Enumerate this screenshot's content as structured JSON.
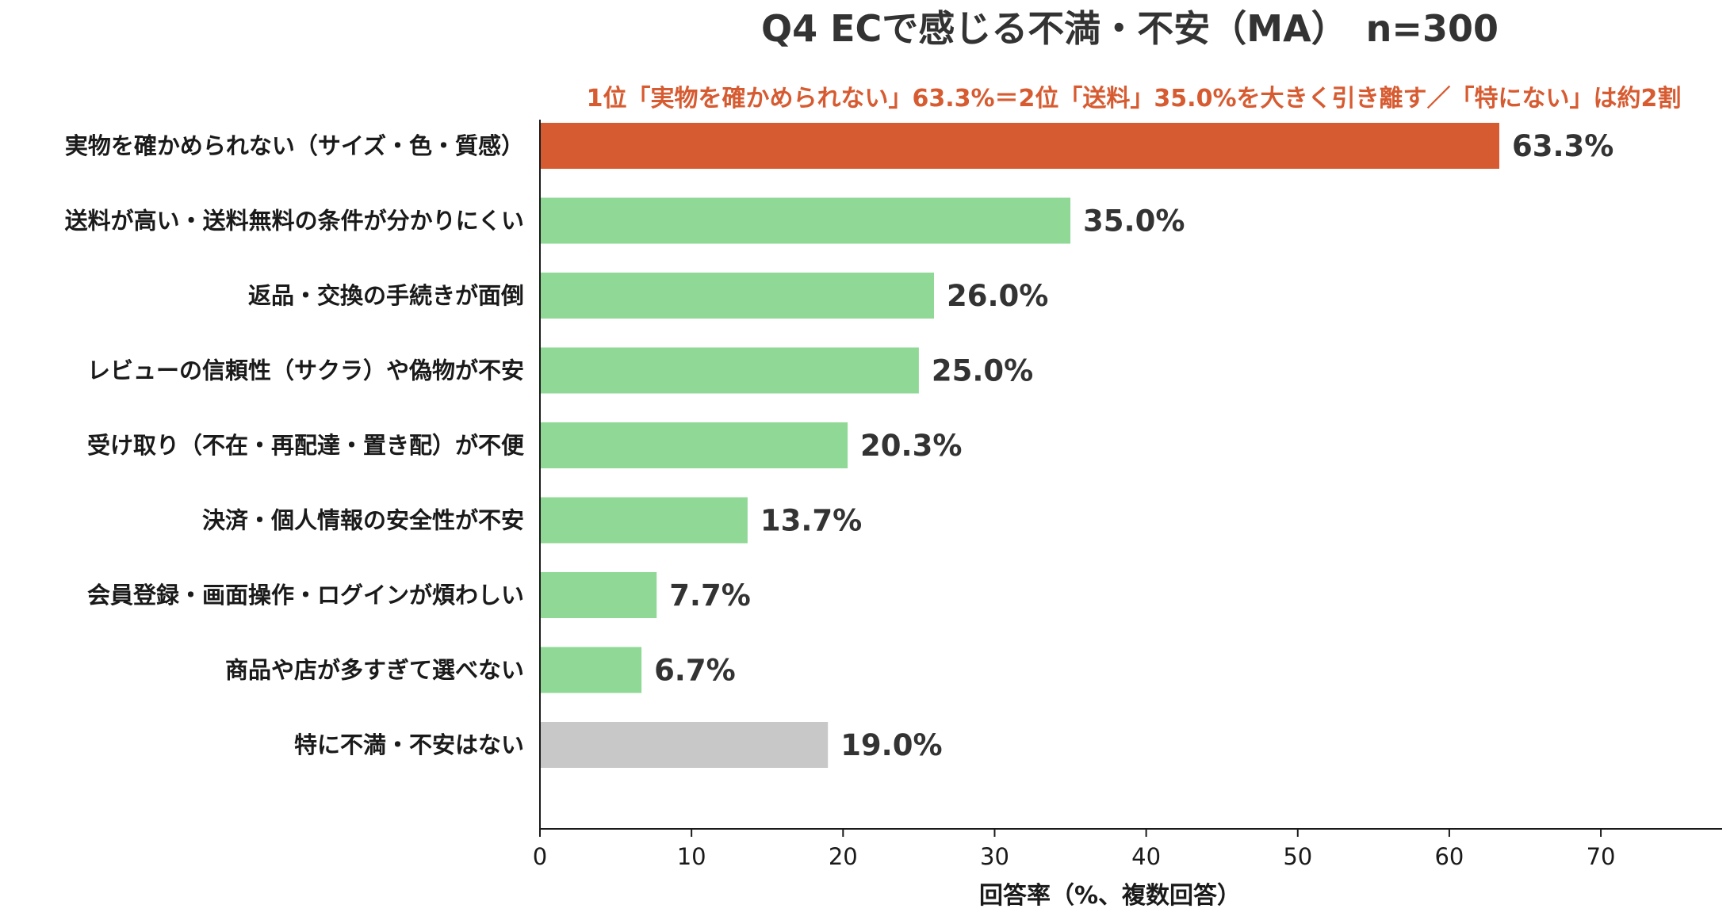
{
  "chart_data": {
    "type": "bar",
    "orientation": "horizontal",
    "title": "Q4 ECで感じる不満・不安（MA）　n=300",
    "subtitle": "1位「実物を確かめられない」63.3%＝2位「送料」35.0%を大きく引き離す／「特にない」は約2割",
    "xlabel": "回答率（%、複数回答）",
    "xlim": [
      0,
      78
    ],
    "xticks": [
      0,
      10,
      20,
      30,
      40,
      50,
      60,
      70
    ],
    "grid": false,
    "categories": [
      "実物を確かめられない（サイズ・色・質感）",
      "送料が高い・送料無料の条件が分かりにくい",
      "返品・交換の手続きが面倒",
      "レビューの信頼性（サクラ）や偽物が不安",
      "受け取り（不在・再配達・置き配）が不便",
      "決済・個人情報の安全性が不安",
      "会員登録・画面操作・ログインが煩わしい",
      "商品や店が多すぎて選べない",
      "特に不満・不安はない"
    ],
    "values": [
      63.3,
      35.0,
      26.0,
      25.0,
      20.3,
      13.7,
      7.7,
      6.7,
      19.0
    ],
    "value_labels": [
      "63.3%",
      "35.0%",
      "26.0%",
      "25.0%",
      "20.3%",
      "13.7%",
      "7.7%",
      "6.7%",
      "19.0%"
    ],
    "bar_colors": [
      "#d75b31",
      "#90d895",
      "#90d895",
      "#90d895",
      "#90d895",
      "#90d895",
      "#90d895",
      "#90d895",
      "#c8c8c8"
    ],
    "colors": {
      "highlight": "#d75b31",
      "standard": "#90d895",
      "none": "#c8c8c8",
      "subtitle": "#d75b31",
      "title": "#333333"
    }
  }
}
